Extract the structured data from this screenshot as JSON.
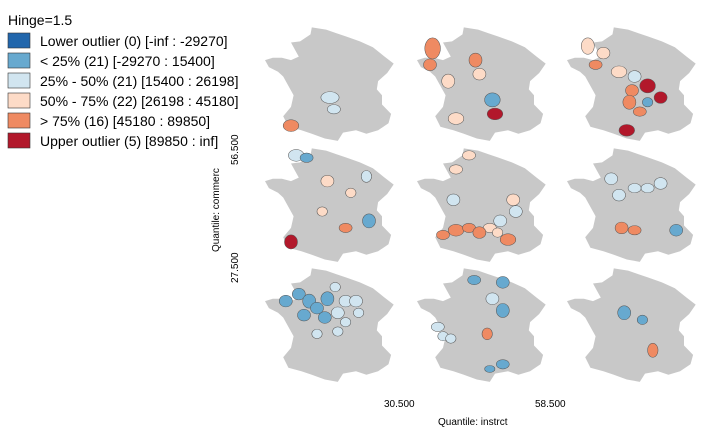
{
  "legend": {
    "title": "Hinge=1.5",
    "items": [
      {
        "label": "Lower outlier (0)  [-inf : -29270]",
        "color": "#2166ac"
      },
      {
        "label": "< 25% (21)  [-29270 : 15400]",
        "color": "#67a9cf"
      },
      {
        "label": "25% - 50% (21)  [15400 : 26198]",
        "color": "#d1e5f0"
      },
      {
        "label": "50% - 75% (22)  [26198 : 45180]",
        "color": "#fddbc7"
      },
      {
        "label": "> 75% (16)  [45180 : 89850]",
        "color": "#ef8a62"
      },
      {
        "label": "Upper outlier (5)  [89850 : inf]",
        "color": "#b2182b"
      }
    ]
  },
  "base_color": "#c8c8c8",
  "axes": {
    "x_title": "Quantile: instrct",
    "x_breaks": [
      "30.500",
      "58.500"
    ],
    "y_title": "Quantile: commerc",
    "y_breaks": [
      "27.500",
      "56.500"
    ]
  }
}
